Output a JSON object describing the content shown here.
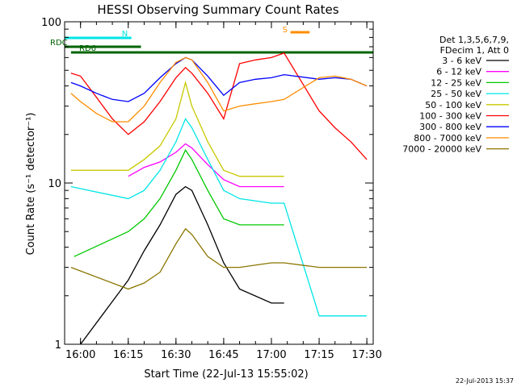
{
  "chart_data": {
    "type": "line",
    "title": "HESSI Observing Summary Count Rates",
    "xlabel": "Start Time (22-Jul-13 15:55:02)",
    "ylabel": "Count Rate (s⁻¹ detector⁻¹)",
    "yscale": "log",
    "ylim": [
      1,
      100
    ],
    "xlim": [
      "15:55",
      "17:32"
    ],
    "x_ticks": [
      "16:00",
      "16:15",
      "16:30",
      "16:45",
      "17:00",
      "17:15",
      "17:30"
    ],
    "y_ticks": [
      "1",
      "10",
      "100"
    ],
    "legend": {
      "position": "outside-right",
      "header": [
        "Det 1,3,5,6,7,9,",
        "FDecim 1, Att 0"
      ]
    },
    "time_stamp": "22-Jul-2013 15:37",
    "grid": false,
    "flags": [
      {
        "label": "RDC",
        "color": "#006400",
        "start": "15:55",
        "end": "16:19"
      },
      {
        "label": "RD6",
        "color": "#006400",
        "start": "15:57",
        "end": "17:32"
      },
      {
        "label": "N",
        "color": "#00e5e5",
        "start": "15:55",
        "end": "16:16"
      },
      {
        "label": "S",
        "color": "#ff8c00",
        "start": "17:06",
        "end": "17:12"
      }
    ],
    "series": [
      {
        "name": "3 - 6 keV",
        "color": "#000000",
        "x": [
          "16:00",
          "16:15",
          "16:20",
          "16:25",
          "16:30",
          "16:33",
          "16:35",
          "16:40",
          "16:45",
          "16:50",
          "17:00",
          "17:04"
        ],
        "y": [
          1.0,
          2.5,
          3.8,
          5.5,
          8.5,
          9.5,
          9.0,
          5.5,
          3.2,
          2.2,
          1.8,
          1.8
        ]
      },
      {
        "name": "6 - 12 keV",
        "color": "#ff00ff",
        "x": [
          "16:15",
          "16:20",
          "16:25",
          "16:30",
          "16:33",
          "16:35",
          "16:40",
          "16:45",
          "16:50",
          "17:00",
          "17:04"
        ],
        "y": [
          11,
          12.5,
          13.5,
          15.5,
          17.5,
          16.5,
          13,
          10.5,
          9.5,
          9.5,
          9.5
        ]
      },
      {
        "name": "12 - 25 keV",
        "color": "#00c800",
        "x": [
          "15:58",
          "16:15",
          "16:20",
          "16:25",
          "16:30",
          "16:33",
          "16:35",
          "16:40",
          "16:45",
          "16:50",
          "17:00",
          "17:04"
        ],
        "y": [
          3.5,
          5.0,
          6.0,
          8.0,
          12,
          16,
          14,
          9,
          6,
          5.5,
          5.5,
          5.5
        ]
      },
      {
        "name": "25 - 50 keV",
        "color": "#00e5e5",
        "x": [
          "15:57",
          "16:15",
          "16:20",
          "16:25",
          "16:30",
          "16:33",
          "16:35",
          "16:40",
          "16:45",
          "16:50",
          "17:00",
          "17:04",
          "17:15",
          "17:20",
          "17:25",
          "17:30"
        ],
        "y": [
          9.5,
          8.0,
          9.0,
          12,
          18,
          25,
          22,
          14,
          9,
          8,
          7.5,
          7.5,
          1.5,
          1.5,
          1.5,
          1.5
        ]
      },
      {
        "name": "50 - 100 keV",
        "color": "#c8c800",
        "x": [
          "15:57",
          "16:15",
          "16:20",
          "16:25",
          "16:30",
          "16:33",
          "16:35",
          "16:40",
          "16:45",
          "16:50",
          "17:00",
          "17:04"
        ],
        "y": [
          12,
          12,
          14,
          17,
          25,
          42,
          30,
          18,
          12,
          11,
          11,
          11
        ]
      },
      {
        "name": "100 - 300 keV",
        "color": "#ff0000",
        "x": [
          "15:57",
          "16:00",
          "16:05",
          "16:10",
          "16:15",
          "16:20",
          "16:25",
          "16:30",
          "16:33",
          "16:35",
          "16:40",
          "16:45",
          "16:50",
          "16:55",
          "17:00",
          "17:04",
          "17:15",
          "17:20",
          "17:25",
          "17:30"
        ],
        "y": [
          48,
          46,
          34,
          25,
          20,
          24,
          32,
          45,
          52,
          48,
          36,
          25,
          55,
          58,
          60,
          64,
          28,
          22,
          18,
          14
        ]
      },
      {
        "name": "300 - 800 keV",
        "color": "#0000ff",
        "x": [
          "15:57",
          "16:00",
          "16:05",
          "16:10",
          "16:15",
          "16:20",
          "16:25",
          "16:30",
          "16:33",
          "16:35",
          "16:40",
          "16:45",
          "16:50",
          "16:55",
          "17:00",
          "17:04",
          "17:15",
          "17:20",
          "17:25",
          "17:30"
        ],
        "y": [
          42,
          40,
          36,
          33,
          32,
          36,
          45,
          55,
          60,
          58,
          46,
          35,
          42,
          44,
          45,
          47,
          44,
          45,
          44,
          40
        ]
      },
      {
        "name": "800 - 7000 keV",
        "color": "#ff8c00",
        "x": [
          "15:57",
          "16:00",
          "16:05",
          "16:10",
          "16:15",
          "16:20",
          "16:25",
          "16:30",
          "16:33",
          "16:35",
          "16:40",
          "16:45",
          "16:50",
          "16:55",
          "17:00",
          "17:04",
          "17:15",
          "17:20",
          "17:25",
          "17:30"
        ],
        "y": [
          36,
          32,
          27,
          24,
          24,
          30,
          42,
          56,
          60,
          58,
          42,
          28,
          30,
          31,
          32,
          33,
          45,
          46,
          44,
          40
        ]
      },
      {
        "name": "7000 - 20000 keV",
        "color": "#8b7500",
        "x": [
          "15:57",
          "16:15",
          "16:20",
          "16:25",
          "16:30",
          "16:33",
          "16:35",
          "16:40",
          "16:45",
          "16:50",
          "17:00",
          "17:04",
          "17:15",
          "17:30"
        ],
        "y": [
          3.0,
          2.2,
          2.4,
          2.8,
          4.2,
          5.2,
          4.8,
          3.5,
          3.0,
          3.0,
          3.2,
          3.2,
          3.0,
          3.0
        ]
      }
    ]
  }
}
